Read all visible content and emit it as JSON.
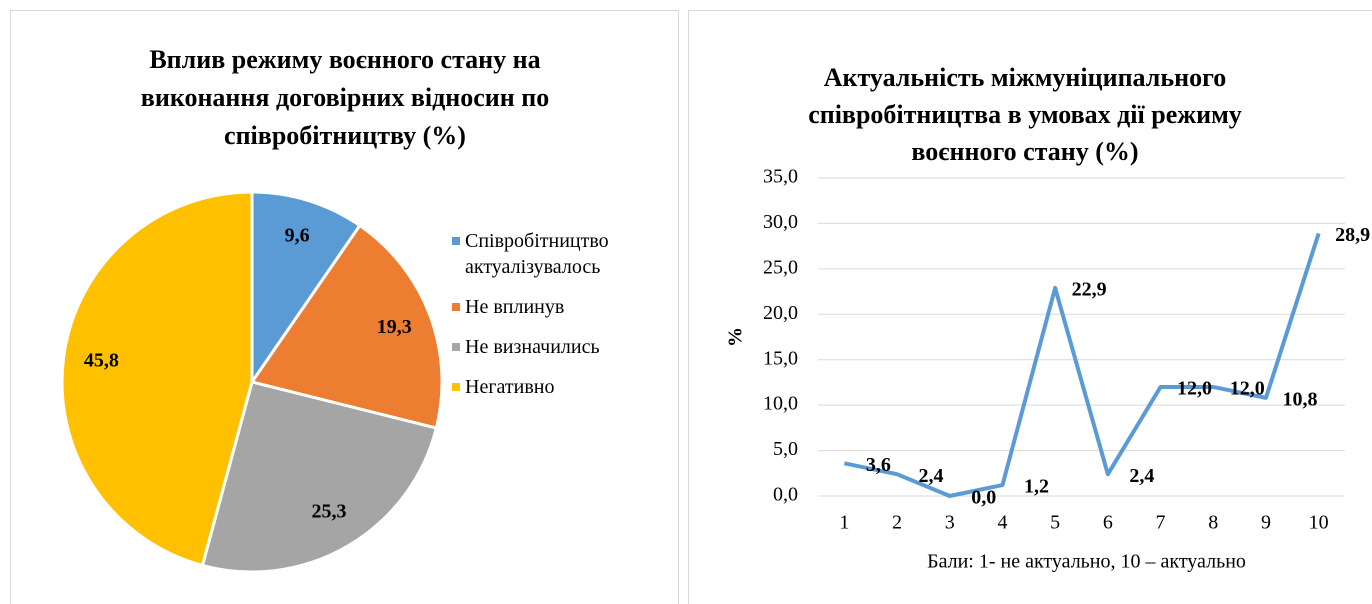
{
  "chart_data": [
    {
      "type": "pie",
      "title": [
        "Вплив режиму воєнного стану на",
        "виконання договірних відносин по",
        "співробітництву (%)"
      ],
      "categories": [
        "Співробітництво актуалізувалось",
        "Не вплинув",
        "Не визначились",
        "Негативно"
      ],
      "values": [
        9.6,
        19.3,
        25.3,
        45.8
      ],
      "value_labels": [
        "9,6",
        "19,3",
        "25,3",
        "45,8"
      ],
      "colors": [
        "#5b9bd5",
        "#ed7d31",
        "#a5a5a5",
        "#ffc000"
      ],
      "legend": "right"
    },
    {
      "type": "line",
      "title": [
        "Актуальність міжмуніципального",
        "співробітництва в умовах дії режиму",
        "воєнного стану (%)"
      ],
      "categories": [
        "1",
        "2",
        "3",
        "4",
        "5",
        "6",
        "7",
        "8",
        "9",
        "10"
      ],
      "series": [
        {
          "name": "%",
          "color": "#5b9bd5",
          "values": [
            3.6,
            2.4,
            0.0,
            1.2,
            22.9,
            2.4,
            12.0,
            12.0,
            10.8,
            28.9
          ],
          "value_labels": [
            "3,6",
            "2,4",
            "0,0",
            "1,2",
            "22,9",
            "2,4",
            "12,0",
            "12,0",
            "10,8",
            "28,9"
          ]
        }
      ],
      "ylabel": "%",
      "xlabel": "Бали: 1- не актуально, 10 – актуально",
      "ylim": [
        0,
        35
      ],
      "yticks": [
        {
          "value": 0,
          "label": "0,0"
        },
        {
          "value": 5,
          "label": "5,0"
        },
        {
          "value": 10,
          "label": "10,0"
        },
        {
          "value": 15,
          "label": "15,0"
        },
        {
          "value": 20,
          "label": "20,0"
        },
        {
          "value": 25,
          "label": "25,0"
        },
        {
          "value": 30,
          "label": "30,0"
        },
        {
          "value": 35,
          "label": "35,0"
        }
      ],
      "grid": true
    }
  ]
}
